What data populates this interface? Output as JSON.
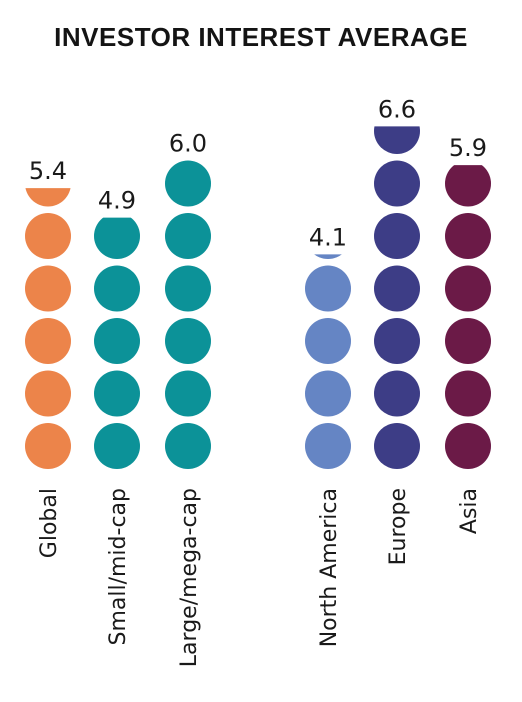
{
  "chart_data": {
    "type": "bar",
    "title": "INVESTOR INTEREST AVERAGE",
    "categories": [
      "Global",
      "Small/mid-cap",
      "Large/mega-cap",
      "North America",
      "Europe",
      "Asia"
    ],
    "values": [
      5.4,
      4.9,
      6.0,
      4.1,
      6.6,
      5.9
    ],
    "value_labels": [
      "5.4",
      "4.9",
      "6.0",
      "4.1",
      "6.6",
      "5.9"
    ],
    "colors": [
      "#EC844A",
      "#0C9298",
      "#0C9298",
      "#6585C4",
      "#3D3D86",
      "#6B1A47"
    ],
    "unit_per_circle": 1,
    "ylim": [
      0,
      7
    ],
    "grid": false,
    "legend": "none"
  }
}
